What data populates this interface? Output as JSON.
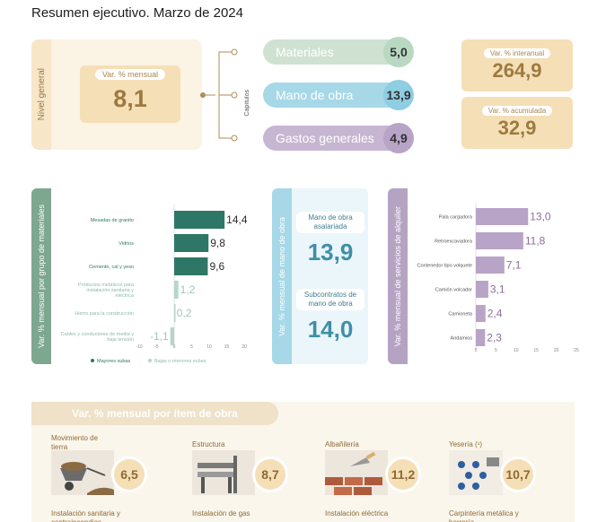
{
  "title": "Resumen ejecutivo. Marzo de 2024",
  "nivel_general": {
    "strip_label": "Nivel general",
    "card_label": "Var. % mensual",
    "card_value": "8,1"
  },
  "capitulos": {
    "label": "Capítulos",
    "items": [
      {
        "label": "Materiales",
        "value": "5,0",
        "color": "#cfe2d2",
        "circle": "#b9d8c1"
      },
      {
        "label": "Mano de obra",
        "value": "13,9",
        "color": "#a6d8e8",
        "circle": "#8ecde2"
      },
      {
        "label": "Gastos generales",
        "value": "4,9",
        "color": "#c7b6d2",
        "circle": "#b8a4c6"
      }
    ]
  },
  "interanual": {
    "label": "Var. % interanual",
    "value": "264,9"
  },
  "acumulada": {
    "label": "Var. % acumulada",
    "value": "32,9"
  },
  "materiales_panel": {
    "strip_label": "Var. % mensual por grupo de materiales"
  },
  "mano_obra_panel": {
    "strip_label": "Var. % mensual de mano de obra",
    "blocks": [
      {
        "label": "Mano de obra asalariada",
        "value": "13,9"
      },
      {
        "label": "Subcontratos de mano de obra",
        "value": "14,0"
      }
    ]
  },
  "alquiler_panel": {
    "strip_label": "Var. % mensual de servicios de alquiler"
  },
  "bottom": {
    "header": "Var. % mensual por ítem de obra",
    "items": [
      {
        "title": "Movimiento de tierra",
        "value": "6,5",
        "footer": "Instalación sanitaria y contraincendios"
      },
      {
        "title": "Estructura",
        "value": "8,7",
        "footer": "Instalación de gas"
      },
      {
        "title": "Albañilería",
        "value": "11,2",
        "footer": "Instalación eléctrica"
      },
      {
        "title": "Yesería (¹)",
        "value": "10,7",
        "footer": "Carpintería metálica y herrería"
      }
    ]
  },
  "chart_data": [
    {
      "type": "bar",
      "orientation": "horizontal",
      "categories": [
        "Mesadas de granito",
        "Vidrios",
        "Cemento, cal y yeso",
        "Productos metálicos para instalación sanitaria y eléctrica",
        "Hierro para la construcción",
        "Cables y conductores de media y baja tensión"
      ],
      "values": [
        14.4,
        9.8,
        9.6,
        1.2,
        0.2,
        -1.1
      ],
      "value_labels": [
        "14,4",
        "9,8",
        "9,6",
        "1,2",
        "0,2",
        "-1,1"
      ],
      "xlim": [
        -10,
        20
      ],
      "xticks": [
        -10,
        -5,
        0,
        5,
        10,
        15,
        20
      ],
      "legend": [
        "Mayores subas",
        "Bajas o menores subas"
      ],
      "legend_position": "bottom",
      "colors": {
        "top": "#2e7767",
        "rest": "#b6d6c8"
      }
    },
    {
      "type": "bar",
      "orientation": "horizontal",
      "categories": [
        "Pala cargadora",
        "Retroexcavadora",
        "Contenedor tipo volquete",
        "Camión volcador",
        "Camioneta",
        "Andamios"
      ],
      "values": [
        13.0,
        11.8,
        7.1,
        3.1,
        2.4,
        2.3
      ],
      "value_labels": [
        "13,0",
        "11,8",
        "7,1",
        "3,1",
        "2,4",
        "2,3"
      ],
      "xlim": [
        0,
        25
      ],
      "xticks": [
        0,
        5,
        10,
        15,
        20,
        25
      ],
      "colors": {
        "bar": "#b8a4c6",
        "label": "#8a6d9c"
      }
    }
  ]
}
